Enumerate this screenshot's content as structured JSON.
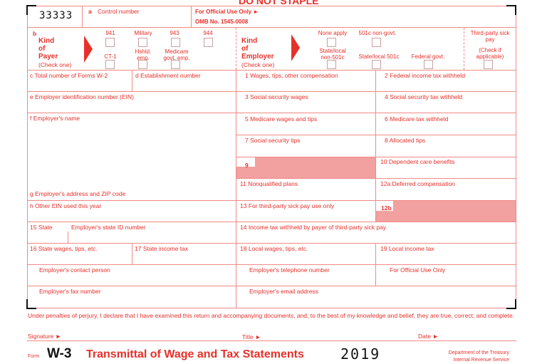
{
  "header": {
    "do_not_staple": "DO NOT STAPLE",
    "control_code": "33333",
    "control_number": "Control number",
    "control_letter": "a",
    "official_use": "For Official Use Only ►",
    "omb": "OMB No. 1545-0008"
  },
  "kind_of_payer": {
    "letter": "b",
    "title_1": "Kind",
    "title_2": "of",
    "title_3": "Payer",
    "check": "(Check one)",
    "options": [
      "941",
      "Military",
      "943",
      "944",
      "CT-1",
      "Hshld. emp.",
      "Medicare govt. emp."
    ]
  },
  "kind_of_employer": {
    "title_1": "Kind",
    "title_2": "of",
    "title_3": "Employer",
    "check": "(Check one)",
    "options": [
      "None apply",
      "501c non-govt.",
      "State/local non-501c",
      "State/local 501c",
      "Federal govt."
    ]
  },
  "third_party": {
    "label": "Third-party sick pay",
    "check": "(Check if applicable)"
  },
  "fields": {
    "c": "c Total number of Forms W-2",
    "d": "d Establishment number",
    "e": "e Employer identification number (EIN)",
    "f": "f  Employer's name",
    "g": "g Employer's address and ZIP code",
    "h": "h Other EIN used this year",
    "s15": "15 State",
    "state_id": "Employer's state ID number",
    "s16": "16 State wages, tips, etc.",
    "s17": "17 State income tax",
    "contact": "Employer's contact person",
    "fax": "Employer's fax number",
    "b1": "1  Wages, tips, other compensation",
    "b2": "2  Federal income tax withheld",
    "b3": "3  Social security wages",
    "b4": "4  Social security tax withheld",
    "b5": "5  Medicare wages and tips",
    "b6": "6  Medicare tax withheld",
    "b7": "7  Social security tips",
    "b8": "8  Allocated tips",
    "b9": "9",
    "b10": "10  Dependent care benefits",
    "b11": "11  Nonqualified plans",
    "b12a": "12a  Deferred compensation",
    "b13": "13  For third-party sick pay use only",
    "b12b": "12b",
    "b14": "14  Income tax withheld by payer of third-party sick pay",
    "b18": "18  Local wages, tips, etc.",
    "b19": "19  Local income tax",
    "phone": "Employer's telephone number",
    "official": "For Official Use Only",
    "email": "Employer's email address"
  },
  "footer": {
    "perjury": "Under penalties of perjury, I declare that I have examined this return and accompanying documents, and, to the best of my knowledge and belief, they are true, correct, and complete.",
    "signature": "Signature ►",
    "title": "Title ►",
    "date": "Date ►",
    "form_word": "Form",
    "form_name": "W-3",
    "form_title": "Transmittal of Wage and Tax Statements",
    "year": "2019",
    "dept": "Department of the Treasury",
    "irs": "Internal Revenue Service"
  }
}
